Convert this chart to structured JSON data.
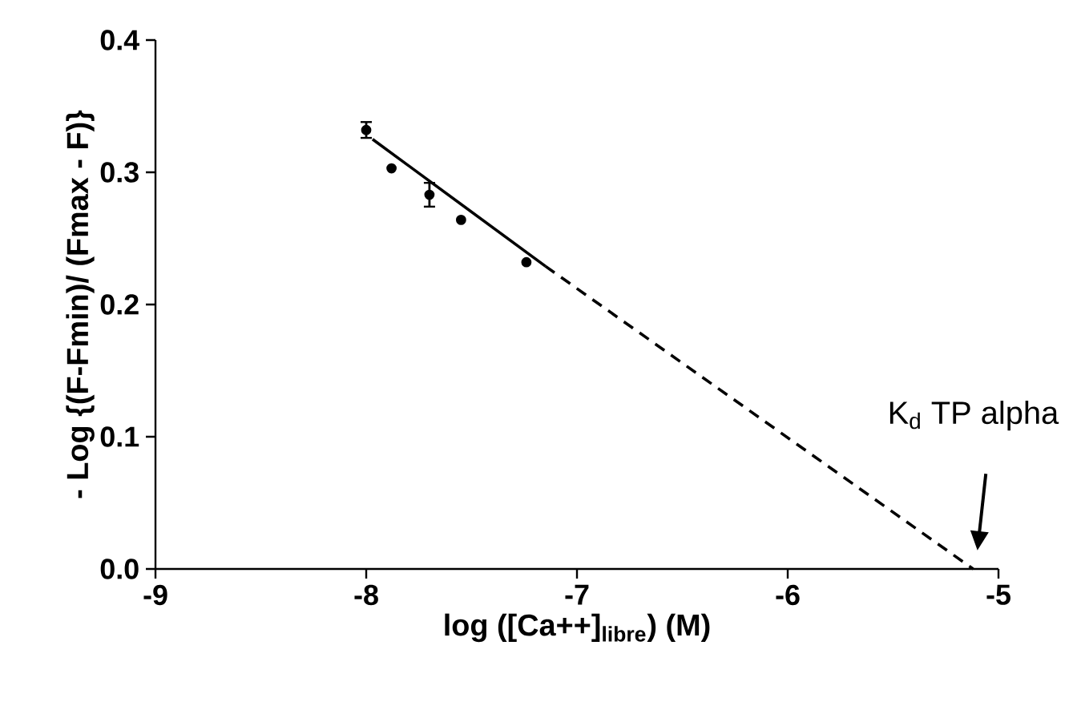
{
  "chart_data": {
    "type": "scatter",
    "xlabel": "log ([Ca++]$_{libre}$) (M)",
    "ylabel": "- Log {(F-Fmin)/ (Fmax - F)}",
    "xlim": [
      -9,
      -5
    ],
    "ylim": [
      0,
      0.4
    ],
    "xticks": [
      -9,
      -8,
      -7,
      -6,
      -5
    ],
    "yticks": [
      {
        "value": 0,
        "label": "0.0"
      },
      0.1,
      0.2,
      0.3,
      0.4
    ],
    "series": [
      {
        "color": "#000000",
        "x": [
          -8.0,
          -7.88,
          -7.7,
          -7.55,
          -7.24
        ],
        "values": [
          0.332,
          0.303,
          0.283,
          0.264,
          0.232
        ],
        "errors": [
          0.006,
          null,
          0.009,
          null,
          null
        ]
      },
      {
        "type": "line",
        "color": "#000000",
        "line_style": "solid",
        "x": [
          -7.97,
          -7.15
        ],
        "values": [
          0.325,
          0.229
        ]
      },
      {
        "type": "line",
        "color": "#000000",
        "line_style": "dashed",
        "x": [
          -7.15,
          -5.12
        ],
        "values": [
          0.229,
          0.0
        ]
      }
    ],
    "annotations": [
      "K$_{d}$ TP alpha"
    ],
    "grid": false
  }
}
